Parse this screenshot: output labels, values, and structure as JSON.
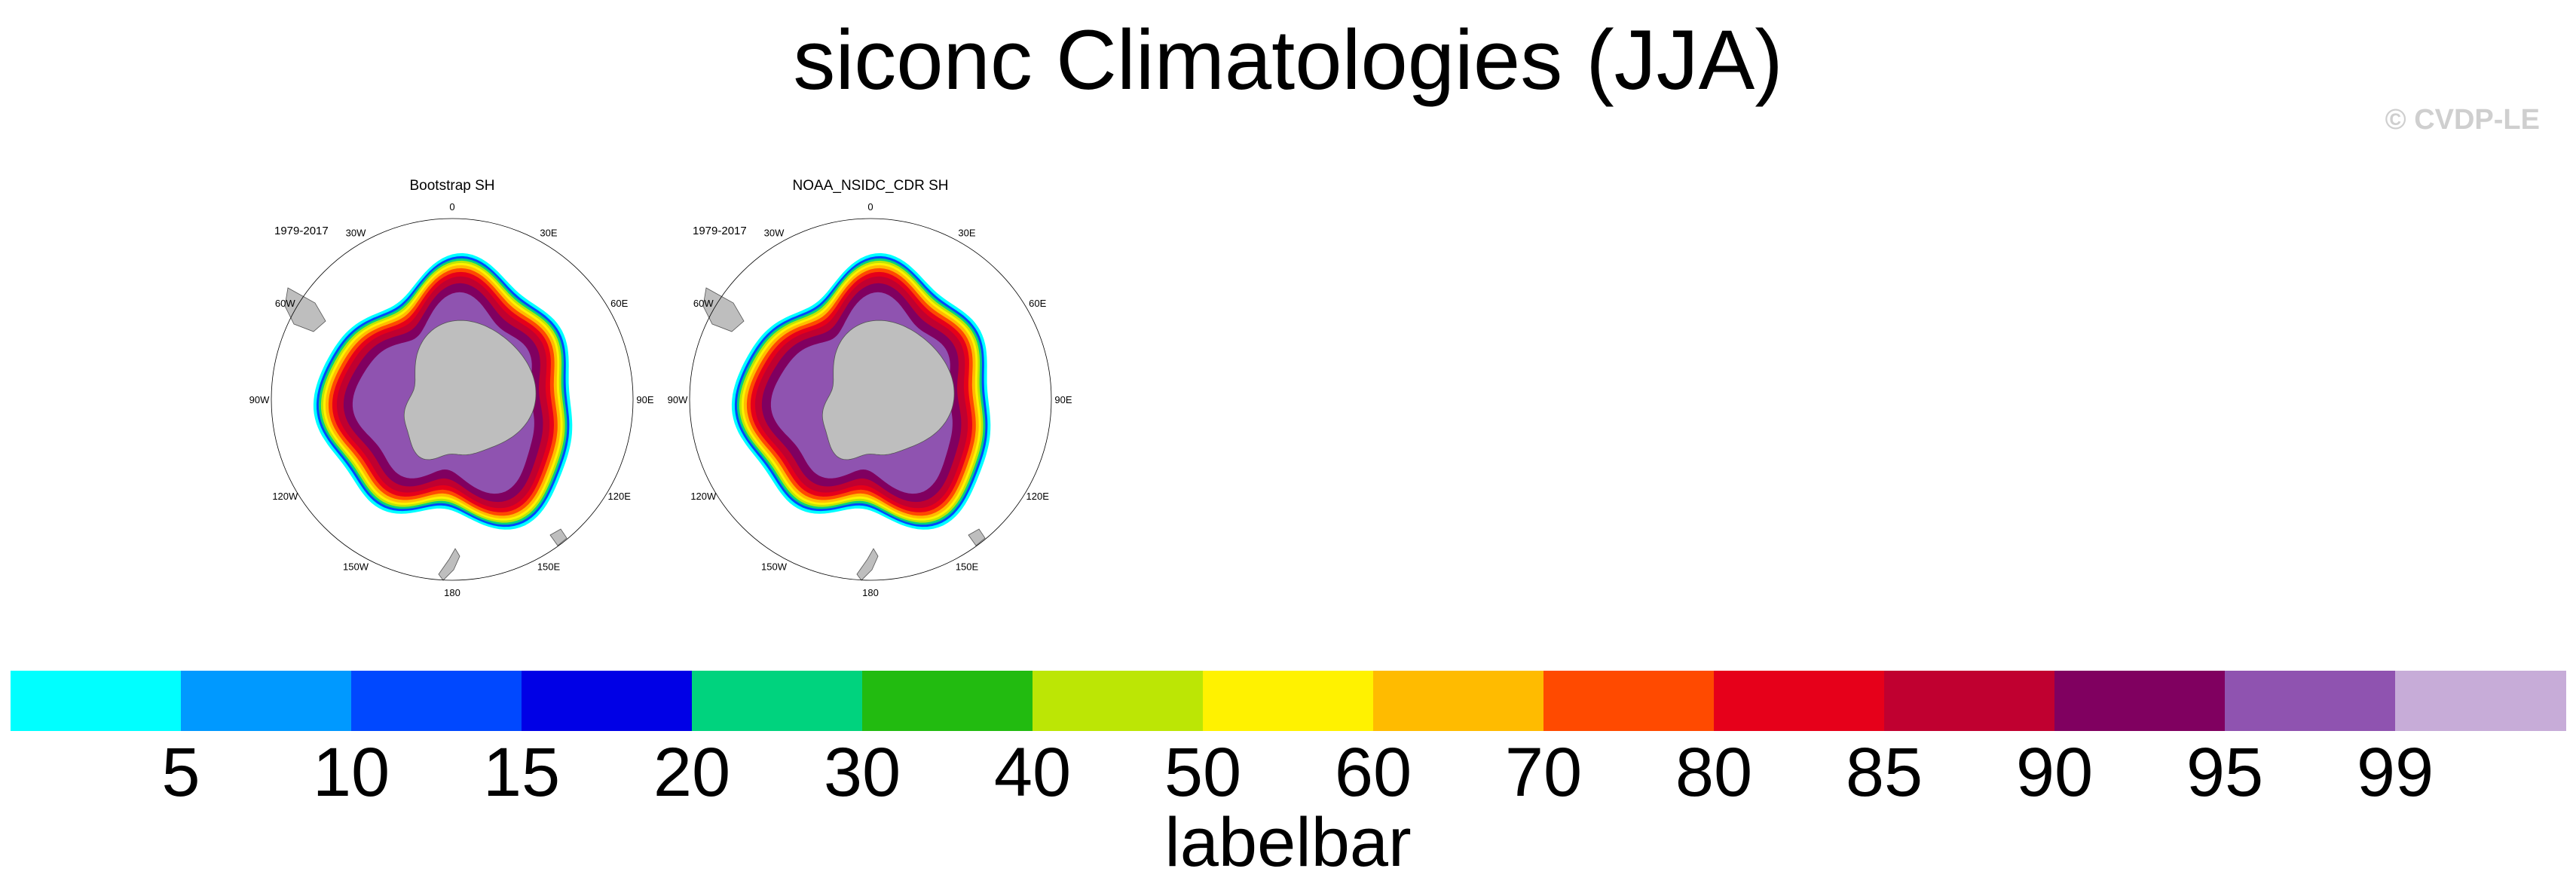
{
  "chart_data": {
    "type": "heatmap",
    "title": "siconc Climatologies (JJA)",
    "copyright": "© CVDP-LE",
    "panels": [
      {
        "title": "Bootstrap SH",
        "period": "1979-2017"
      },
      {
        "title": "NOAA_NSIDC_CDR SH",
        "period": "1979-2017"
      }
    ],
    "longitude_labels": [
      "0",
      "30E",
      "60E",
      "90E",
      "120E",
      "150E",
      "180",
      "150W",
      "120W",
      "90W",
      "60W",
      "30W"
    ],
    "labelbar": {
      "title": "labelbar",
      "ticks": [
        "5",
        "10",
        "15",
        "20",
        "30",
        "40",
        "50",
        "60",
        "70",
        "80",
        "85",
        "90",
        "95",
        "99"
      ],
      "colors": [
        "#00ffff",
        "#0099ff",
        "#0048ff",
        "#0000e6",
        "#00d37e",
        "#22bb10",
        "#bce605",
        "#fff200",
        "#ffbb00",
        "#ff4a00",
        "#e6001a",
        "#c00030",
        "#800060",
        "#8f53b0",
        "#c7acd8"
      ]
    },
    "land_color": "#bebebe"
  }
}
